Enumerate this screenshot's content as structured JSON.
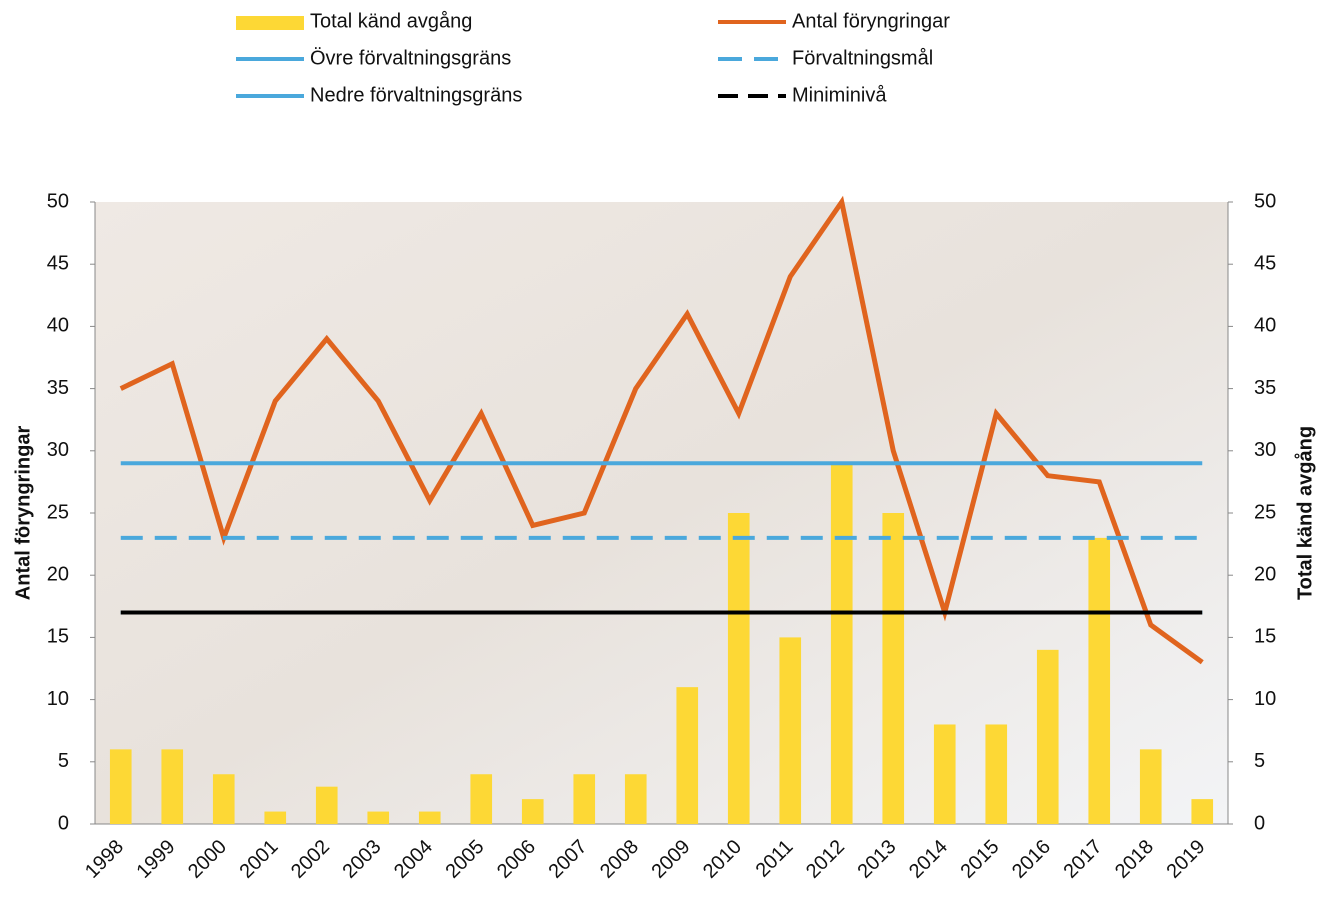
{
  "chart_data": {
    "type": "combo",
    "ylabel": "Antal föryngringar",
    "y2label": "Total känd avgång",
    "categories": [
      "1998",
      "1999",
      "2000",
      "2001",
      "2002",
      "2003",
      "2004",
      "2005",
      "2006",
      "2007",
      "2008",
      "2009",
      "2010",
      "2011",
      "2012",
      "2013",
      "2014",
      "2015",
      "2016",
      "2017",
      "2018",
      "2019"
    ],
    "ylim": [
      0,
      50
    ],
    "yticks": [
      0,
      5,
      10,
      15,
      20,
      25,
      30,
      35,
      40,
      45,
      50
    ],
    "y2lim": [
      0,
      50
    ],
    "y2ticks": [
      0,
      5,
      10,
      15,
      20,
      25,
      30,
      35,
      40,
      45,
      50
    ],
    "series": [
      {
        "name": "Total känd avgång",
        "type": "bar",
        "axis": "y2",
        "color": "#fdd835",
        "values": [
          6,
          6,
          4,
          1,
          3,
          1,
          1,
          4,
          2,
          4,
          4,
          11,
          25,
          15,
          29,
          25,
          8,
          8,
          14,
          23,
          6,
          2
        ]
      },
      {
        "name": "Antal föryngringar",
        "type": "line",
        "color": "#e0641e",
        "style": "solid",
        "values": [
          35,
          37,
          23,
          34,
          39,
          34,
          26,
          33,
          24,
          25,
          35,
          41,
          33,
          44,
          50,
          30,
          17,
          33,
          28,
          27.5,
          16,
          13
        ]
      },
      {
        "name": "Övre förvaltningsgräns",
        "type": "line",
        "color": "#4aa8dc",
        "style": "solid",
        "values": [
          29,
          29,
          29,
          29,
          29,
          29,
          29,
          29,
          29,
          29,
          29,
          29,
          29,
          29,
          29,
          29,
          29,
          29,
          29,
          29,
          29,
          29
        ]
      },
      {
        "name": "Förvaltningsmål",
        "type": "line",
        "color": "#4aa8dc",
        "style": "dashed",
        "values": [
          23,
          23,
          23,
          23,
          23,
          23,
          23,
          23,
          23,
          23,
          23,
          23,
          23,
          23,
          23,
          23,
          23,
          23,
          23,
          23,
          23,
          23
        ]
      },
      {
        "name": "Nedre förvaltningsgräns",
        "type": "line",
        "color": "#4aa8dc",
        "style": "solid",
        "values": [
          17,
          17,
          17,
          17,
          17,
          17,
          17,
          17,
          17,
          17,
          17,
          17,
          17,
          17,
          17,
          17,
          17,
          17,
          17,
          17,
          17,
          17
        ]
      },
      {
        "name": "Miniminivå",
        "type": "line",
        "color": "#000000",
        "style": "dashed",
        "values": [
          17,
          17,
          17,
          17,
          17,
          17,
          17,
          17,
          17,
          17,
          17,
          17,
          17,
          17,
          17,
          17,
          17,
          17,
          17,
          17,
          17,
          17
        ]
      }
    ]
  }
}
